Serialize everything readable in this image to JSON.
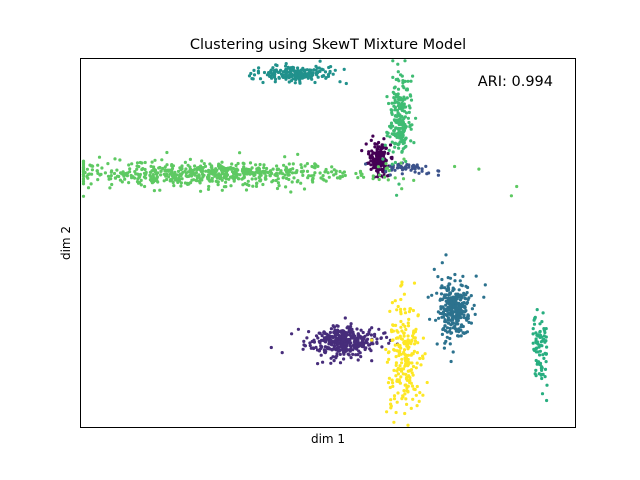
{
  "chart_data": {
    "type": "scatter",
    "title": "Clustering using SkewT Mixture Model",
    "xlabel": "dim 1",
    "ylabel": "dim 2",
    "annotation": "ARI: 0.994",
    "xlim": [
      0,
      100
    ],
    "ylim": [
      0,
      100
    ],
    "ticks_visible": false,
    "grid": false,
    "legend": "none",
    "series": [
      {
        "color": "#440154",
        "points": 180,
        "center": [
          60.3,
          72.8
        ],
        "spread": [
          1.0,
          2.0
        ],
        "shape": "round"
      },
      {
        "color": "#472d7b",
        "points": 380,
        "center": [
          52.6,
          23.3
        ],
        "spread": [
          3.5,
          2.0
        ],
        "shape": "round"
      },
      {
        "color": "#3b528b",
        "points": 50,
        "center": [
          66.0,
          70.5
        ],
        "spread": [
          3.0,
          0.6
        ],
        "shape": "flat"
      },
      {
        "color": "#2c728e",
        "points": 300,
        "center": [
          75.6,
          32.0
        ],
        "spread": [
          1.6,
          3.6
        ],
        "shape": "round"
      },
      {
        "color": "#21918c",
        "points": 200,
        "center": [
          43.6,
          96.0
        ],
        "spread": [
          3.6,
          1.0
        ],
        "shape": "flat"
      },
      {
        "color": "#28ae80",
        "points": 80,
        "center": [
          93.0,
          21.0
        ],
        "spread": [
          0.8,
          4.5
        ],
        "shape": "vert"
      },
      {
        "color": "#3fbc73",
        "points": 220,
        "center": [
          64.6,
          83.5
        ],
        "spread": [
          1.0,
          6.0
        ],
        "shape": "vert"
      },
      {
        "color": "#5ec962",
        "points": 650,
        "center": [
          27.0,
          68.8
        ],
        "spread": [
          14.0,
          1.6
        ],
        "shape": "flat"
      },
      {
        "color": "#fde725",
        "points": 220,
        "center": [
          65.5,
          19.0
        ],
        "spread": [
          1.6,
          7.5
        ],
        "shape": "vert"
      }
    ]
  }
}
